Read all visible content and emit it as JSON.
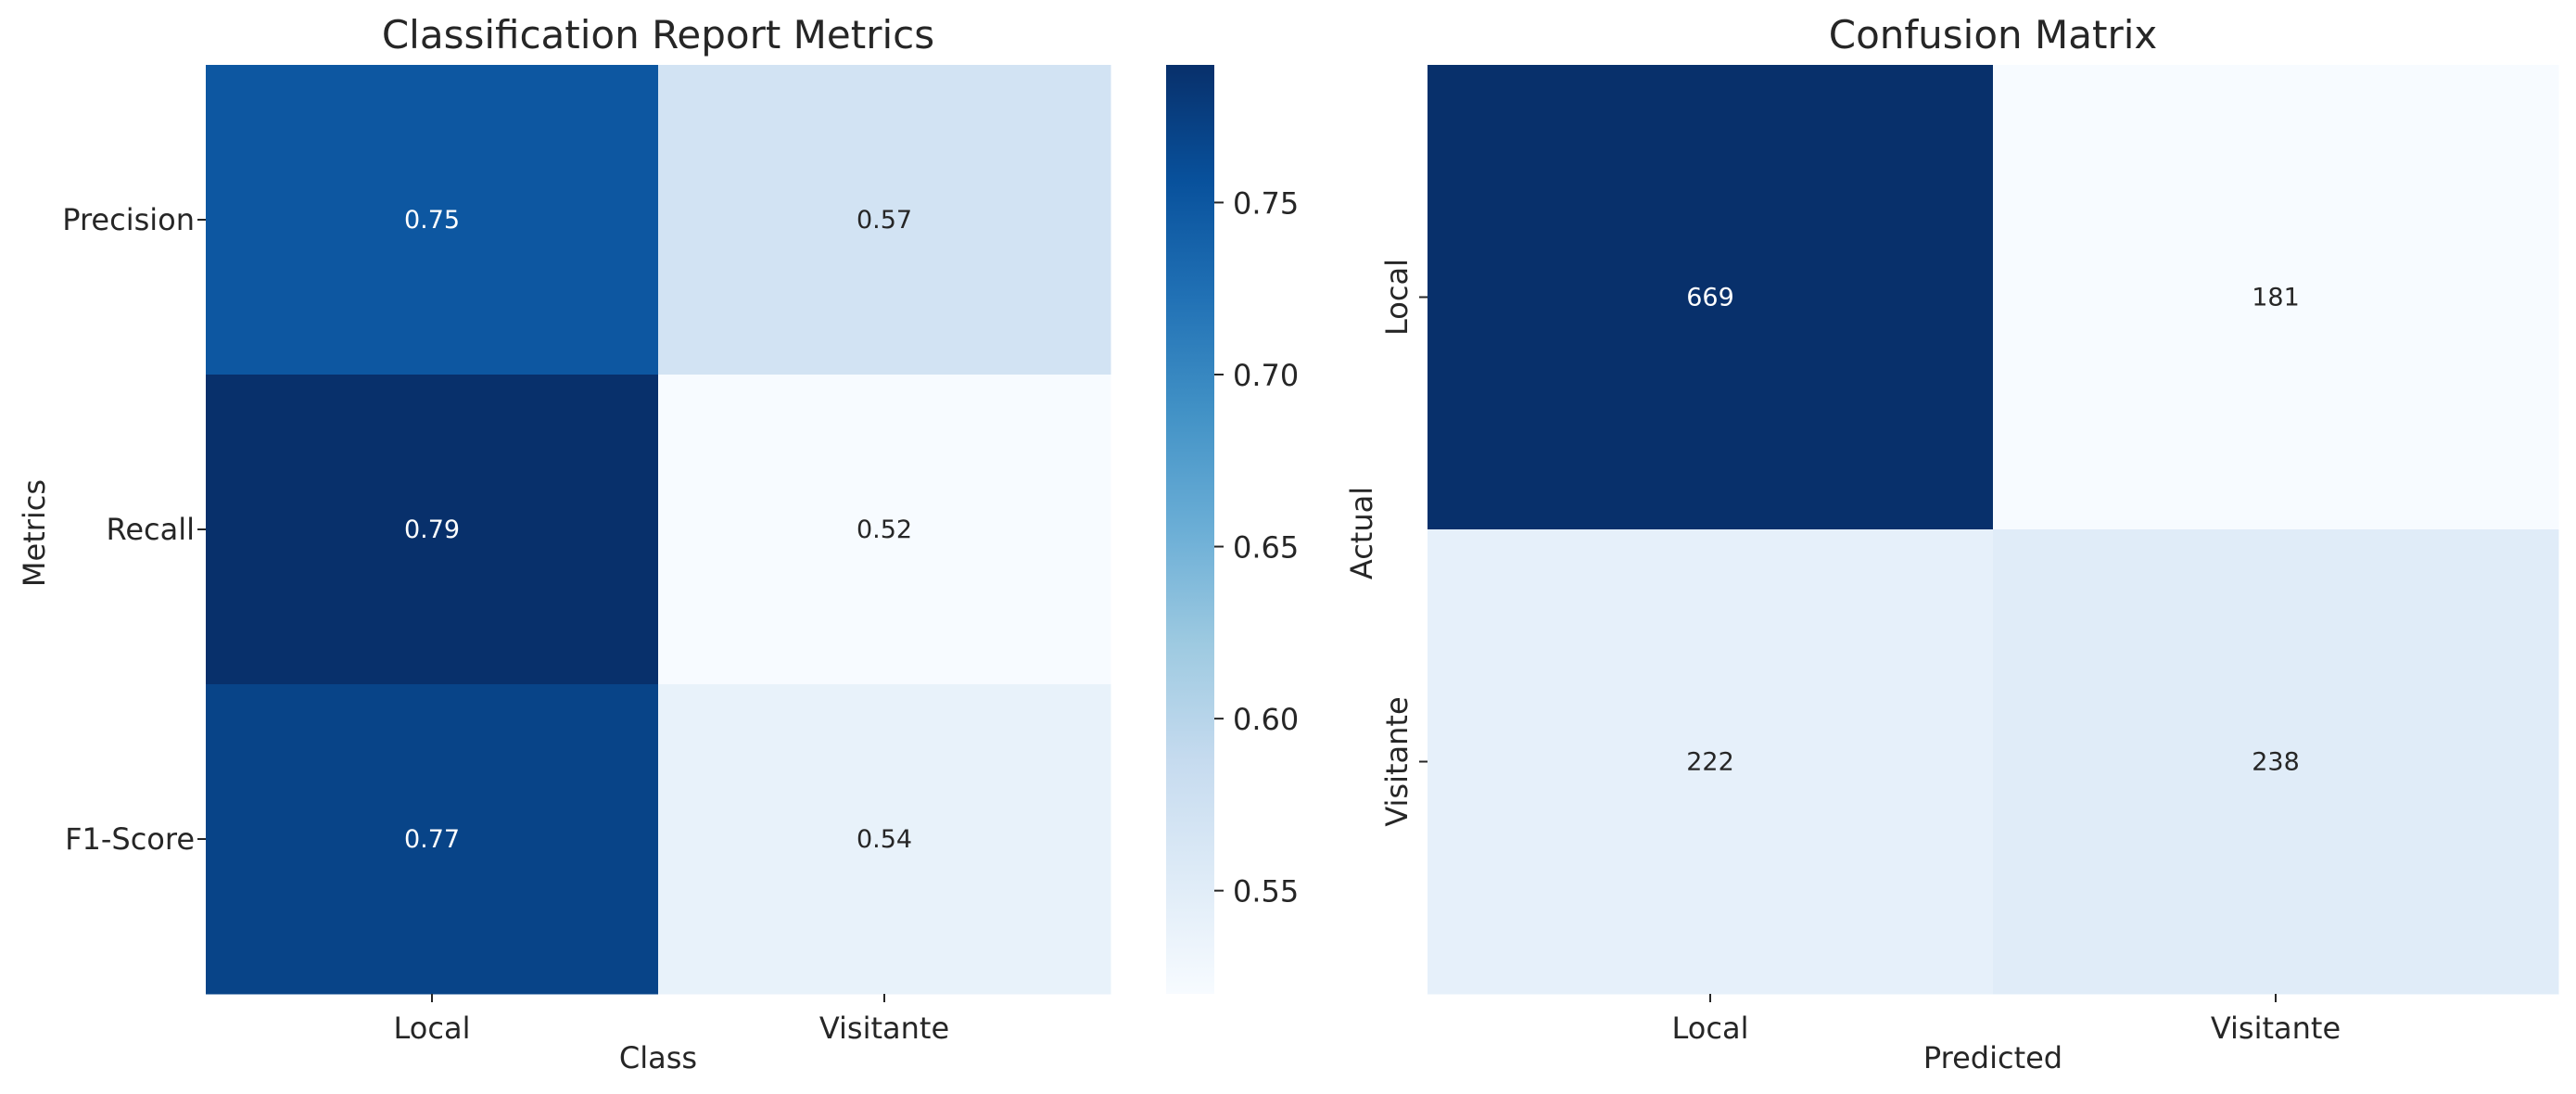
{
  "colormap": {
    "name": "Blues",
    "stops": [
      "#f7fbff",
      "#deebf7",
      "#c6dbef",
      "#9ecae1",
      "#6baed6",
      "#4292c6",
      "#2171b5",
      "#08519c",
      "#08306b"
    ]
  },
  "chart_data": [
    {
      "type": "heatmap",
      "title": "Classification Report Metrics",
      "xlabel": "Class",
      "ylabel": "Metrics",
      "x_categories": [
        "Local",
        "Visitante"
      ],
      "y_categories": [
        "Precision",
        "Recall",
        "F1-Score"
      ],
      "values": [
        [
          0.75,
          0.57
        ],
        [
          0.79,
          0.52
        ],
        [
          0.77,
          0.54
        ]
      ],
      "value_labels": [
        [
          "0.75",
          "0.57"
        ],
        [
          "0.79",
          "0.52"
        ],
        [
          "0.77",
          "0.54"
        ]
      ],
      "colorbar": {
        "range": [
          0.52,
          0.79
        ],
        "ticks": [
          0.55,
          0.6,
          0.65,
          0.7,
          0.75
        ],
        "tick_labels": [
          "0.55",
          "0.60",
          "0.65",
          "0.70",
          "0.75"
        ]
      }
    },
    {
      "type": "heatmap",
      "title": "Confusion Matrix",
      "xlabel": "Predicted",
      "ylabel": "Actual",
      "x_categories": [
        "Local",
        "Visitante"
      ],
      "y_categories": [
        "Local",
        "Visitante"
      ],
      "values": [
        [
          669,
          181
        ],
        [
          222,
          238
        ]
      ],
      "value_labels": [
        [
          "669",
          "181"
        ],
        [
          "222",
          "238"
        ]
      ],
      "color_range": [
        181,
        669
      ]
    }
  ]
}
